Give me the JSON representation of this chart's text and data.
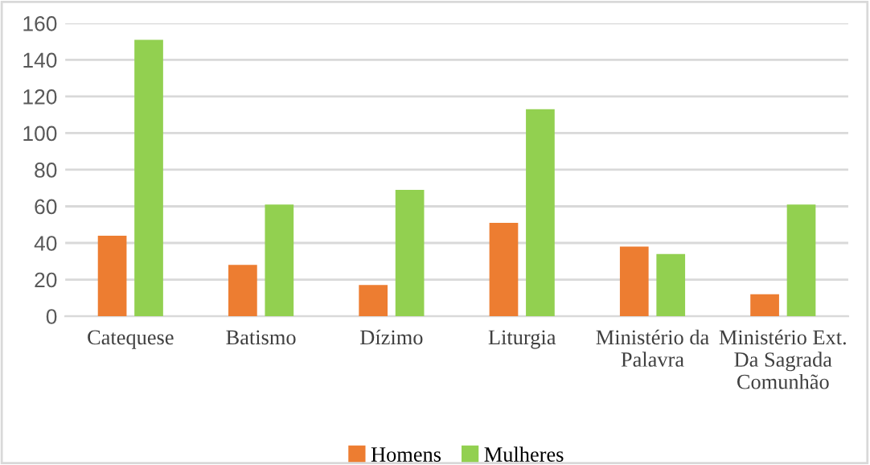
{
  "chart_data": {
    "type": "bar",
    "categories": [
      "Catequese",
      "Batismo",
      "Dízimo",
      "Liturgia",
      "Ministério da\nPalavra",
      "Ministério Ext.\nDa Sagrada\nComunhão"
    ],
    "series": [
      {
        "name": "Homens",
        "color": "#ed7d31",
        "values": [
          44,
          28,
          17,
          51,
          38,
          12
        ]
      },
      {
        "name": "Mulheres",
        "color": "#92d050",
        "values": [
          151,
          61,
          69,
          113,
          34,
          61
        ]
      }
    ],
    "ylim": [
      0,
      160
    ],
    "yticks": [
      0,
      20,
      40,
      60,
      80,
      100,
      120,
      140,
      160
    ],
    "grid": "y",
    "legend": "bottom"
  }
}
